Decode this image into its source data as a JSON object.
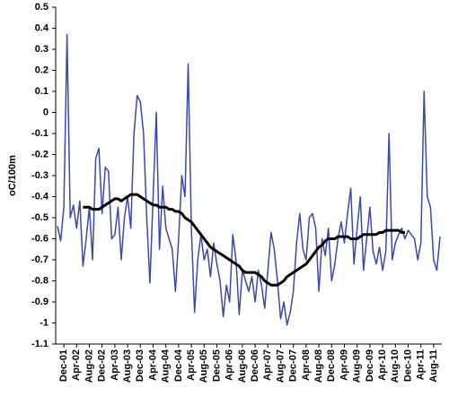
{
  "chart_data": {
    "type": "line",
    "ylabel": "oC/100m",
    "ylim": [
      -1.1,
      0.5
    ],
    "yticks": [
      0.5,
      0.4,
      0.3,
      0.2,
      0.1,
      0,
      -0.1,
      -0.2,
      -0.3,
      -0.4,
      -0.5,
      -0.6,
      -0.7,
      -0.8,
      -0.9,
      -1,
      -1.1
    ],
    "categories": [
      null,
      null,
      "Dec-01",
      null,
      null,
      null,
      "Apr-02",
      null,
      null,
      null,
      "Aug-02",
      null,
      null,
      null,
      "Dec-02",
      null,
      null,
      null,
      "Apr-03",
      null,
      null,
      null,
      "Aug-03",
      null,
      null,
      null,
      "Dec-03",
      null,
      null,
      null,
      "Apr-04",
      null,
      null,
      null,
      "Aug-04",
      null,
      null,
      null,
      "Dec-04",
      null,
      null,
      null,
      "Apr-05",
      null,
      null,
      null,
      "Aug-05",
      null,
      null,
      null,
      "Dec-05",
      null,
      null,
      null,
      "Apr-06",
      null,
      null,
      null,
      "Aug-06",
      null,
      null,
      null,
      "Dec-06",
      null,
      null,
      null,
      "Apr-07",
      null,
      null,
      null,
      "Aug-07",
      null,
      null,
      null,
      "Dec-07",
      null,
      null,
      null,
      "Apr-08",
      null,
      null,
      null,
      "Aug-08",
      null,
      null,
      null,
      "Dec-08",
      null,
      null,
      null,
      "Apr-09",
      null,
      null,
      null,
      "Aug-09",
      null,
      null,
      null,
      "Dec-09",
      null,
      null,
      null,
      "Apr-10",
      null,
      null,
      null,
      "Aug-10",
      null,
      null,
      null,
      "Dec-10",
      null,
      null,
      null,
      "Apr-11",
      null,
      null,
      null,
      "Aug-11",
      null,
      null
    ],
    "series": [
      {
        "color": "#3b4aa8",
        "width": 1.5,
        "values": [
          -0.54,
          -0.61,
          -0.45,
          0.37,
          -0.5,
          -0.44,
          -0.55,
          -0.42,
          -0.73,
          -0.6,
          -0.45,
          -0.7,
          -0.22,
          -0.17,
          -0.48,
          -0.26,
          -0.28,
          -0.6,
          -0.58,
          -0.45,
          -0.7,
          -0.5,
          -0.4,
          -0.55,
          -0.1,
          0.08,
          0.05,
          -0.1,
          -0.5,
          -0.81,
          -0.4,
          0.0,
          -0.65,
          -0.35,
          -0.55,
          -0.6,
          -0.65,
          -0.85,
          -0.6,
          -0.3,
          -0.4,
          0.23,
          -0.55,
          -0.95,
          -0.7,
          -0.58,
          -0.7,
          -0.65,
          -0.78,
          -0.62,
          -0.72,
          -0.8,
          -0.97,
          -0.82,
          -0.9,
          -0.58,
          -0.7,
          -0.96,
          -0.75,
          -0.8,
          -0.85,
          -0.78,
          -0.9,
          -0.75,
          -0.82,
          -0.93,
          -0.75,
          -0.57,
          -0.65,
          -0.8,
          -0.98,
          -0.9,
          -1.01,
          -0.95,
          -0.85,
          -0.62,
          -0.48,
          -0.65,
          -0.7,
          -0.5,
          -0.48,
          -0.55,
          -0.85,
          -0.6,
          -0.68,
          -0.55,
          -0.8,
          -0.72,
          -0.6,
          -0.52,
          -0.62,
          -0.48,
          -0.36,
          -0.72,
          -0.55,
          -0.4,
          -0.75,
          -0.6,
          -0.45,
          -0.66,
          -0.72,
          -0.64,
          -0.75,
          -0.66,
          -0.1,
          -0.7,
          -0.62,
          -0.58,
          -0.55,
          -0.6,
          -0.56,
          -0.58,
          -0.6,
          -0.7,
          -0.62,
          0.1,
          -0.4,
          -0.45,
          -0.7,
          -0.75,
          -0.59
        ]
      },
      {
        "color": "#000000",
        "width": 3,
        "values": [
          null,
          null,
          null,
          null,
          null,
          null,
          null,
          null,
          -0.45,
          -0.45,
          -0.45,
          -0.46,
          -0.46,
          -0.46,
          -0.45,
          -0.44,
          -0.43,
          -0.42,
          -0.41,
          -0.41,
          -0.42,
          -0.41,
          -0.4,
          -0.39,
          -0.39,
          -0.39,
          -0.4,
          -0.41,
          -0.42,
          -0.43,
          -0.44,
          -0.44,
          -0.45,
          -0.45,
          -0.45,
          -0.46,
          -0.46,
          -0.47,
          -0.47,
          -0.48,
          -0.5,
          -0.51,
          -0.52,
          -0.54,
          -0.56,
          -0.58,
          -0.6,
          -0.62,
          -0.64,
          -0.65,
          -0.66,
          -0.67,
          -0.68,
          -0.69,
          -0.7,
          -0.71,
          -0.72,
          -0.73,
          -0.75,
          -0.76,
          -0.76,
          -0.76,
          -0.76,
          -0.77,
          -0.78,
          -0.8,
          -0.81,
          -0.82,
          -0.82,
          -0.82,
          -0.81,
          -0.8,
          -0.78,
          -0.77,
          -0.76,
          -0.75,
          -0.74,
          -0.73,
          -0.72,
          -0.7,
          -0.68,
          -0.66,
          -0.64,
          -0.63,
          -0.61,
          -0.6,
          -0.6,
          -0.6,
          -0.59,
          -0.59,
          -0.59,
          -0.59,
          -0.6,
          -0.6,
          -0.6,
          -0.59,
          -0.58,
          -0.58,
          -0.58,
          -0.58,
          -0.58,
          -0.57,
          -0.57,
          -0.56,
          -0.56,
          -0.56,
          -0.56,
          -0.56,
          -0.57,
          -0.57,
          null,
          null,
          null,
          null,
          null,
          null,
          null,
          null,
          null,
          null,
          null
        ]
      }
    ]
  }
}
